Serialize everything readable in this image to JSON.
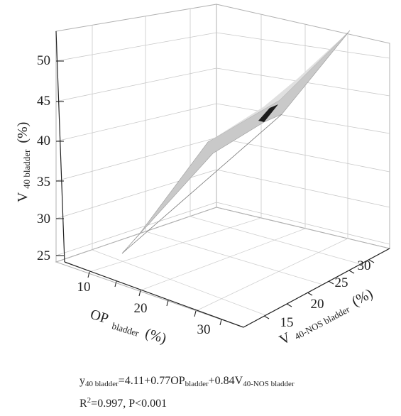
{
  "chart_data": {
    "type": "surface3d",
    "title": "",
    "z_axis": {
      "label": "V",
      "label_sub": "40 bladder",
      "label_unit": "(%)",
      "ticks": [
        25,
        30,
        35,
        40,
        45,
        50
      ],
      "range": [
        24,
        53
      ]
    },
    "x_axis": {
      "label": "OP",
      "label_sub": "bladder",
      "label_unit": "(%)",
      "ticks": [
        10,
        20,
        30
      ],
      "range": [
        5,
        35
      ]
    },
    "y_axis": {
      "label": "V",
      "label_sub": "40-NOS bladder",
      "label_unit": "(%)",
      "ticks": [
        15,
        20,
        25,
        30
      ],
      "range": [
        12,
        32
      ]
    },
    "regression": {
      "intercept": 4.11,
      "op_coef": 0.77,
      "v40nos_coef": 0.84
    },
    "surface_color": "#c8c8c8",
    "surface_dark_color": "#1c1c1c",
    "grid": true
  },
  "equation": {
    "y": "y",
    "y_sub": "40 bladder",
    "eq1": "=4.11+0.77OP",
    "op_sub": "bladder",
    "eq2": "+0.84V",
    "v_sub": "40-NOS bladder"
  },
  "stats": {
    "r": "R",
    "r_sup": "2",
    "rest": "=0.997, P<0.001"
  }
}
